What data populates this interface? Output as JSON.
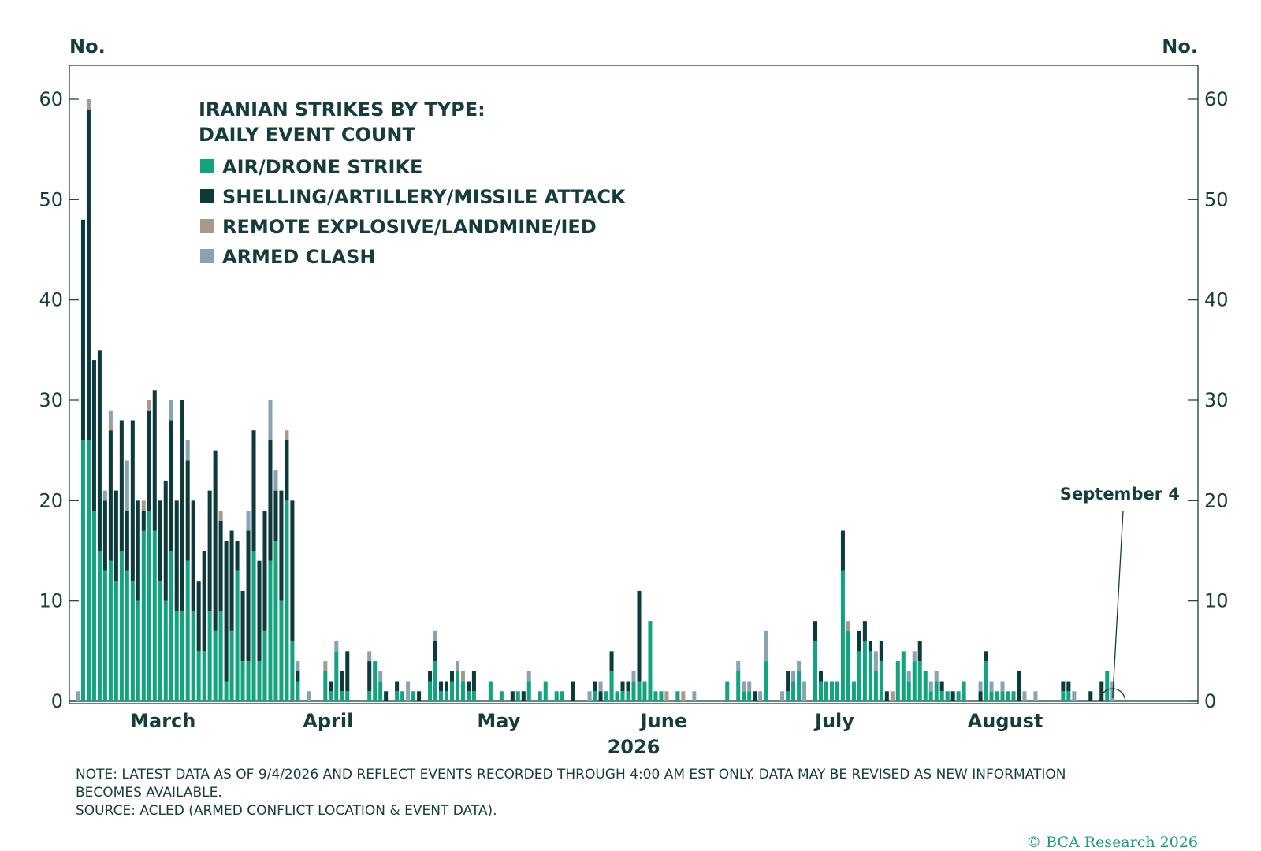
{
  "chart_data": {
    "type": "bar",
    "stacked": true,
    "title_lines": [
      "IRANIAN STRIKES BY TYPE:",
      "DAILY EVENT COUNT"
    ],
    "left_axis_label": "No.",
    "right_axis_label": "No.",
    "xlabel": "2026",
    "ylim": [
      0,
      63
    ],
    "yticks": [
      "0",
      "10",
      "20",
      "30",
      "40",
      "50",
      "60"
    ],
    "month_labels": [
      {
        "label": "March",
        "date": "2026-03-16"
      },
      {
        "label": "April",
        "date": "2026-04-15"
      },
      {
        "label": "May",
        "date": "2026-05-16"
      },
      {
        "label": "June",
        "date": "2026-06-15"
      },
      {
        "label": "July",
        "date": "2026-07-16"
      },
      {
        "label": "August",
        "date": "2026-08-16"
      }
    ],
    "x_start": "2026-02-27",
    "x_end": "2026-09-20",
    "legend_position": "top-left",
    "series": [
      {
        "name": "AIR/DRONE STRIKE",
        "color": "#14a37f"
      },
      {
        "name": "SHELLING/ARTILLERY/MISSILE ATTACK",
        "color": "#0f3a3d"
      },
      {
        "name": "REMOTE EXPLOSIVE/LANDMINE/IED",
        "color": "#a89a8a"
      },
      {
        "name": "ARMED CLASH",
        "color": "#8aa3b4"
      }
    ],
    "days": [
      [
        "2026-02-28",
        0,
        0,
        0,
        1
      ],
      [
        "2026-03-01",
        26,
        22,
        0,
        0
      ],
      [
        "2026-03-02",
        26,
        33,
        1,
        0
      ],
      [
        "2026-03-03",
        19,
        15,
        0,
        0
      ],
      [
        "2026-03-04",
        15,
        20,
        0,
        0
      ],
      [
        "2026-03-05",
        13,
        7,
        0,
        1
      ],
      [
        "2026-03-06",
        14,
        13,
        1,
        1
      ],
      [
        "2026-03-07",
        12,
        9,
        0,
        0
      ],
      [
        "2026-03-08",
        15,
        13,
        0,
        0
      ],
      [
        "2026-03-09",
        13,
        6,
        0,
        5
      ],
      [
        "2026-03-10",
        12,
        16,
        0,
        0
      ],
      [
        "2026-03-11",
        10,
        10,
        0,
        0
      ],
      [
        "2026-03-12",
        17,
        2,
        1,
        0
      ],
      [
        "2026-03-13",
        19,
        10,
        1,
        0
      ],
      [
        "2026-03-14",
        17,
        14,
        0,
        0
      ],
      [
        "2026-03-15",
        12,
        8,
        0,
        0
      ],
      [
        "2026-03-16",
        10,
        12,
        0,
        0
      ],
      [
        "2026-03-17",
        15,
        13,
        0,
        2
      ],
      [
        "2026-03-18",
        9,
        11,
        0,
        0
      ],
      [
        "2026-03-19",
        9,
        21,
        0,
        0
      ],
      [
        "2026-03-20",
        14,
        10,
        0,
        2
      ],
      [
        "2026-03-21",
        9,
        11,
        0,
        0
      ],
      [
        "2026-03-22",
        5,
        7,
        0,
        0
      ],
      [
        "2026-03-23",
        5,
        10,
        0,
        0
      ],
      [
        "2026-03-24",
        9,
        12,
        0,
        0
      ],
      [
        "2026-03-25",
        7,
        18,
        0,
        0
      ],
      [
        "2026-03-26",
        9,
        9,
        1,
        0
      ],
      [
        "2026-03-27",
        2,
        14,
        0,
        0
      ],
      [
        "2026-03-28",
        7,
        10,
        0,
        0
      ],
      [
        "2026-03-29",
        13,
        3,
        0,
        0
      ],
      [
        "2026-03-30",
        4,
        7,
        0,
        0
      ],
      [
        "2026-03-31",
        4,
        13,
        0,
        2
      ],
      [
        "2026-04-01",
        15,
        12,
        0,
        0
      ],
      [
        "2026-04-02",
        4,
        10,
        0,
        0
      ],
      [
        "2026-04-03",
        7,
        12,
        0,
        0
      ],
      [
        "2026-04-04",
        14,
        12,
        0,
        4
      ],
      [
        "2026-04-05",
        16,
        5,
        0,
        2
      ],
      [
        "2026-04-06",
        10,
        11,
        0,
        0
      ],
      [
        "2026-04-07",
        20,
        6,
        1,
        0
      ],
      [
        "2026-04-08",
        6,
        14,
        0,
        0
      ],
      [
        "2026-04-09",
        2,
        1,
        0,
        1
      ],
      [
        "2026-04-11",
        0,
        0,
        0,
        1
      ],
      [
        "2026-04-14",
        3,
        0,
        1,
        0
      ],
      [
        "2026-04-15",
        1,
        1,
        0,
        0
      ],
      [
        "2026-04-16",
        5,
        0,
        0,
        1
      ],
      [
        "2026-04-17",
        1,
        2,
        0,
        0
      ],
      [
        "2026-04-18",
        1,
        4,
        0,
        0
      ],
      [
        "2026-04-22",
        1,
        3,
        0,
        1
      ],
      [
        "2026-04-23",
        4,
        0,
        0,
        0
      ],
      [
        "2026-04-24",
        2,
        0,
        0,
        1
      ],
      [
        "2026-04-25",
        0,
        1,
        0,
        0
      ],
      [
        "2026-04-27",
        1,
        1,
        0,
        0
      ],
      [
        "2026-04-28",
        1,
        0,
        0,
        0
      ],
      [
        "2026-04-29",
        0,
        0,
        0,
        2
      ],
      [
        "2026-04-30",
        1,
        0,
        0,
        0
      ],
      [
        "2026-05-01",
        0,
        1,
        0,
        0
      ],
      [
        "2026-05-03",
        2,
        1,
        0,
        0
      ],
      [
        "2026-05-04",
        4,
        2,
        0,
        1
      ],
      [
        "2026-05-05",
        1,
        1,
        0,
        0
      ],
      [
        "2026-05-06",
        1,
        1,
        0,
        0
      ],
      [
        "2026-05-07",
        2,
        1,
        0,
        0
      ],
      [
        "2026-05-08",
        3,
        0,
        0,
        1
      ],
      [
        "2026-05-09",
        2,
        0,
        1,
        0
      ],
      [
        "2026-05-10",
        1,
        1,
        0,
        0
      ],
      [
        "2026-05-11",
        1,
        2,
        0,
        0
      ],
      [
        "2026-05-14",
        2,
        0,
        0,
        0
      ],
      [
        "2026-05-16",
        1,
        0,
        0,
        0
      ],
      [
        "2026-05-18",
        0,
        1,
        0,
        0
      ],
      [
        "2026-05-19",
        1,
        0,
        0,
        0
      ],
      [
        "2026-05-20",
        0,
        1,
        0,
        0
      ],
      [
        "2026-05-21",
        2,
        0,
        0,
        1
      ],
      [
        "2026-05-23",
        1,
        0,
        0,
        0
      ],
      [
        "2026-05-24",
        2,
        0,
        0,
        0
      ],
      [
        "2026-05-26",
        1,
        0,
        0,
        0
      ],
      [
        "2026-05-27",
        1,
        0,
        0,
        0
      ],
      [
        "2026-05-29",
        0,
        2,
        0,
        0
      ],
      [
        "2026-06-01",
        0,
        0,
        0,
        1
      ],
      [
        "2026-06-02",
        1,
        1,
        0,
        0
      ],
      [
        "2026-06-03",
        0,
        1,
        0,
        1
      ],
      [
        "2026-06-04",
        1,
        0,
        0,
        0
      ],
      [
        "2026-06-05",
        3,
        2,
        0,
        0
      ],
      [
        "2026-06-06",
        1,
        0,
        0,
        0
      ],
      [
        "2026-06-07",
        1,
        1,
        0,
        0
      ],
      [
        "2026-06-08",
        1,
        1,
        0,
        0
      ],
      [
        "2026-06-09",
        2,
        0,
        0,
        1
      ],
      [
        "2026-06-10",
        2,
        9,
        0,
        0
      ],
      [
        "2026-06-11",
        2,
        0,
        0,
        0
      ],
      [
        "2026-06-12",
        8,
        0,
        0,
        0
      ],
      [
        "2026-06-13",
        1,
        0,
        0,
        0
      ],
      [
        "2026-06-14",
        1,
        0,
        0,
        0
      ],
      [
        "2026-06-15",
        0,
        0,
        1,
        0
      ],
      [
        "2026-06-17",
        1,
        0,
        0,
        0
      ],
      [
        "2026-06-18",
        0,
        0,
        1,
        0
      ],
      [
        "2026-06-20",
        0,
        0,
        0,
        1
      ],
      [
        "2026-06-26",
        2,
        0,
        0,
        0
      ],
      [
        "2026-06-28",
        3,
        0,
        0,
        1
      ],
      [
        "2026-06-29",
        1,
        0,
        0,
        1
      ],
      [
        "2026-06-30",
        1,
        0,
        0,
        1
      ],
      [
        "2026-07-01",
        0,
        1,
        0,
        0
      ],
      [
        "2026-07-02",
        0,
        0,
        0,
        1
      ],
      [
        "2026-07-03",
        4,
        0,
        0,
        3
      ],
      [
        "2026-07-06",
        0,
        0,
        0,
        1
      ],
      [
        "2026-07-07",
        1,
        2,
        0,
        0
      ],
      [
        "2026-07-08",
        2,
        0,
        0,
        1
      ],
      [
        "2026-07-09",
        3,
        0,
        0,
        1
      ],
      [
        "2026-07-10",
        0,
        0,
        0,
        2
      ],
      [
        "2026-07-12",
        6,
        2,
        0,
        0
      ],
      [
        "2026-07-13",
        2,
        1,
        0,
        0
      ],
      [
        "2026-07-14",
        2,
        0,
        0,
        0
      ],
      [
        "2026-07-15",
        2,
        0,
        0,
        0
      ],
      [
        "2026-07-16",
        2,
        0,
        0,
        0
      ],
      [
        "2026-07-17",
        13,
        4,
        0,
        0
      ],
      [
        "2026-07-18",
        7,
        0,
        1,
        0
      ],
      [
        "2026-07-19",
        2,
        0,
        0,
        0
      ],
      [
        "2026-07-20",
        5,
        2,
        0,
        0
      ],
      [
        "2026-07-21",
        6,
        2,
        0,
        0
      ],
      [
        "2026-07-22",
        5,
        1,
        0,
        0
      ],
      [
        "2026-07-23",
        3,
        0,
        0,
        2
      ],
      [
        "2026-07-24",
        4,
        2,
        0,
        0
      ],
      [
        "2026-07-25",
        0,
        1,
        0,
        0
      ],
      [
        "2026-07-26",
        0,
        0,
        1,
        0
      ],
      [
        "2026-07-27",
        4,
        0,
        0,
        0
      ],
      [
        "2026-07-28",
        5,
        0,
        0,
        0
      ],
      [
        "2026-07-29",
        2,
        0,
        0,
        1
      ],
      [
        "2026-07-30",
        4,
        0,
        0,
        1
      ],
      [
        "2026-07-31",
        4,
        2,
        0,
        0
      ],
      [
        "2026-08-01",
        3,
        0,
        0,
        0
      ],
      [
        "2026-08-02",
        1,
        0,
        0,
        1
      ],
      [
        "2026-08-03",
        2,
        0,
        0,
        1
      ],
      [
        "2026-08-04",
        1,
        1,
        0,
        0
      ],
      [
        "2026-08-05",
        1,
        0,
        0,
        0
      ],
      [
        "2026-08-06",
        0,
        1,
        0,
        0
      ],
      [
        "2026-08-07",
        1,
        0,
        0,
        0
      ],
      [
        "2026-08-08",
        2,
        0,
        0,
        0
      ],
      [
        "2026-08-11",
        0,
        1,
        0,
        1
      ],
      [
        "2026-08-12",
        4,
        1,
        0,
        0
      ],
      [
        "2026-08-13",
        1,
        0,
        0,
        1
      ],
      [
        "2026-08-14",
        1,
        0,
        0,
        0
      ],
      [
        "2026-08-15",
        1,
        0,
        0,
        1
      ],
      [
        "2026-08-16",
        1,
        0,
        0,
        0
      ],
      [
        "2026-08-17",
        1,
        0,
        0,
        0
      ],
      [
        "2026-08-18",
        0,
        3,
        0,
        0
      ],
      [
        "2026-08-19",
        0,
        0,
        0,
        1
      ],
      [
        "2026-08-21",
        0,
        0,
        0,
        1
      ],
      [
        "2026-08-26",
        1,
        1,
        0,
        0
      ],
      [
        "2026-08-27",
        1,
        1,
        0,
        0
      ],
      [
        "2026-08-28",
        0,
        0,
        0,
        1
      ],
      [
        "2026-08-31",
        0,
        1,
        0,
        0
      ],
      [
        "2026-09-02",
        0,
        2,
        0,
        0
      ],
      [
        "2026-09-03",
        3,
        0,
        0,
        0
      ],
      [
        "2026-09-04",
        0,
        0,
        0,
        2
      ]
    ],
    "annotation": {
      "text": "September 4",
      "date": "2026-09-04"
    }
  },
  "notes": {
    "note_line1": "NOTE: LATEST DATA AS OF 9/4/2026 AND REFLECT EVENTS RECORDED THROUGH 4:00 AM EST ONLY. DATA MAY BE REVISED AS NEW INFORMATION",
    "note_line2": "BECOMES AVAILABLE.",
    "source": "SOURCE: ACLED (ARMED CONFLICT LOCATION & EVENT DATA)."
  },
  "copyright": "© BCA Research 2026"
}
